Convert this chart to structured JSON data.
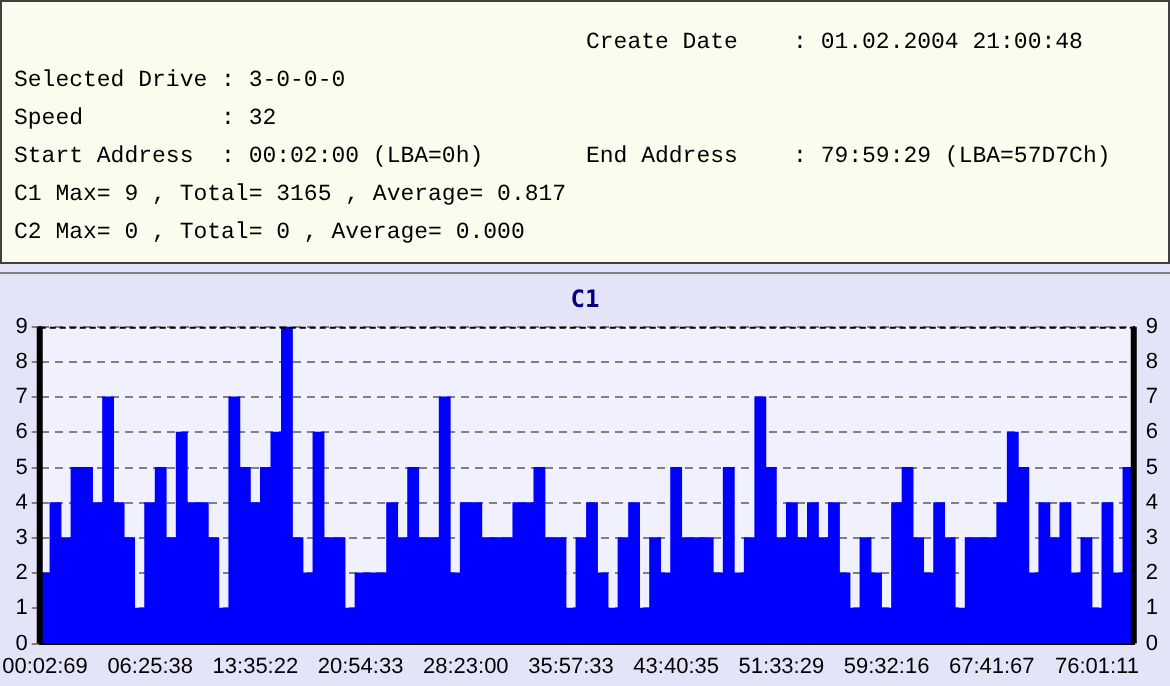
{
  "chart_data": {
    "type": "bar",
    "title": "C1",
    "annotations": [
      "Create Date    : 01.02.2004 21:00:48",
      "Selected Drive : 3-0-0-0",
      "Speed          : 32",
      "Start Address  : 00:02:00 (LBA=0h)",
      "End Address    : 79:59:29 (LBA=57D7Ch)",
      "C1 Max= 9 , Total= 3165 , Average= 0.817",
      "C2 Max= 0 , Total= 0 , Average= 0.000"
    ],
    "categories": [
      "00:02:69",
      null,
      null,
      null,
      null,
      null,
      null,
      null,
      null,
      null,
      "06:25:38",
      null,
      null,
      null,
      null,
      null,
      null,
      null,
      null,
      null,
      "13:35:22",
      null,
      null,
      null,
      null,
      null,
      null,
      null,
      null,
      null,
      "20:54:33",
      null,
      null,
      null,
      null,
      null,
      null,
      null,
      null,
      null,
      "28:23:00",
      null,
      null,
      null,
      null,
      null,
      null,
      null,
      null,
      null,
      "35:57:33",
      null,
      null,
      null,
      null,
      null,
      null,
      null,
      null,
      null,
      "43:40:35",
      null,
      null,
      null,
      null,
      null,
      null,
      null,
      null,
      null,
      "51:33:29",
      null,
      null,
      null,
      null,
      null,
      null,
      null,
      null,
      null,
      "59:32:16",
      null,
      null,
      null,
      null,
      null,
      null,
      null,
      null,
      null,
      "67:41:67",
      null,
      null,
      null,
      null,
      null,
      null,
      null,
      null,
      null,
      "76:01:11",
      null,
      null,
      null
    ],
    "values": [
      2,
      4,
      3,
      5,
      5,
      4,
      7,
      4,
      3,
      1,
      4,
      5,
      3,
      6,
      4,
      4,
      3,
      1,
      7,
      5,
      4,
      5,
      6,
      9,
      3,
      2,
      6,
      3,
      3,
      1,
      2,
      2,
      2,
      4,
      3,
      5,
      3,
      3,
      7,
      2,
      4,
      4,
      3,
      3,
      3,
      4,
      4,
      5,
      3,
      3,
      1,
      3,
      4,
      2,
      1,
      3,
      4,
      1,
      3,
      2,
      5,
      3,
      3,
      3,
      2,
      5,
      2,
      3,
      7,
      5,
      3,
      4,
      3,
      4,
      3,
      4,
      2,
      1,
      3,
      2,
      1,
      4,
      5,
      3,
      2,
      4,
      3,
      1,
      3,
      3,
      3,
      4,
      6,
      5,
      2,
      4,
      3,
      4,
      2,
      3,
      1,
      4,
      2,
      5
    ],
    "color": "#0000ff",
    "ylim": [
      0,
      9
    ],
    "yticks": [
      0,
      1,
      2,
      3,
      4,
      5,
      6,
      7,
      8,
      9
    ],
    "y2lim": [
      0,
      9
    ],
    "y2ticks": [
      0,
      1,
      2,
      3,
      4,
      5,
      6,
      7,
      8,
      9
    ],
    "grid": "y",
    "legend": false
  }
}
